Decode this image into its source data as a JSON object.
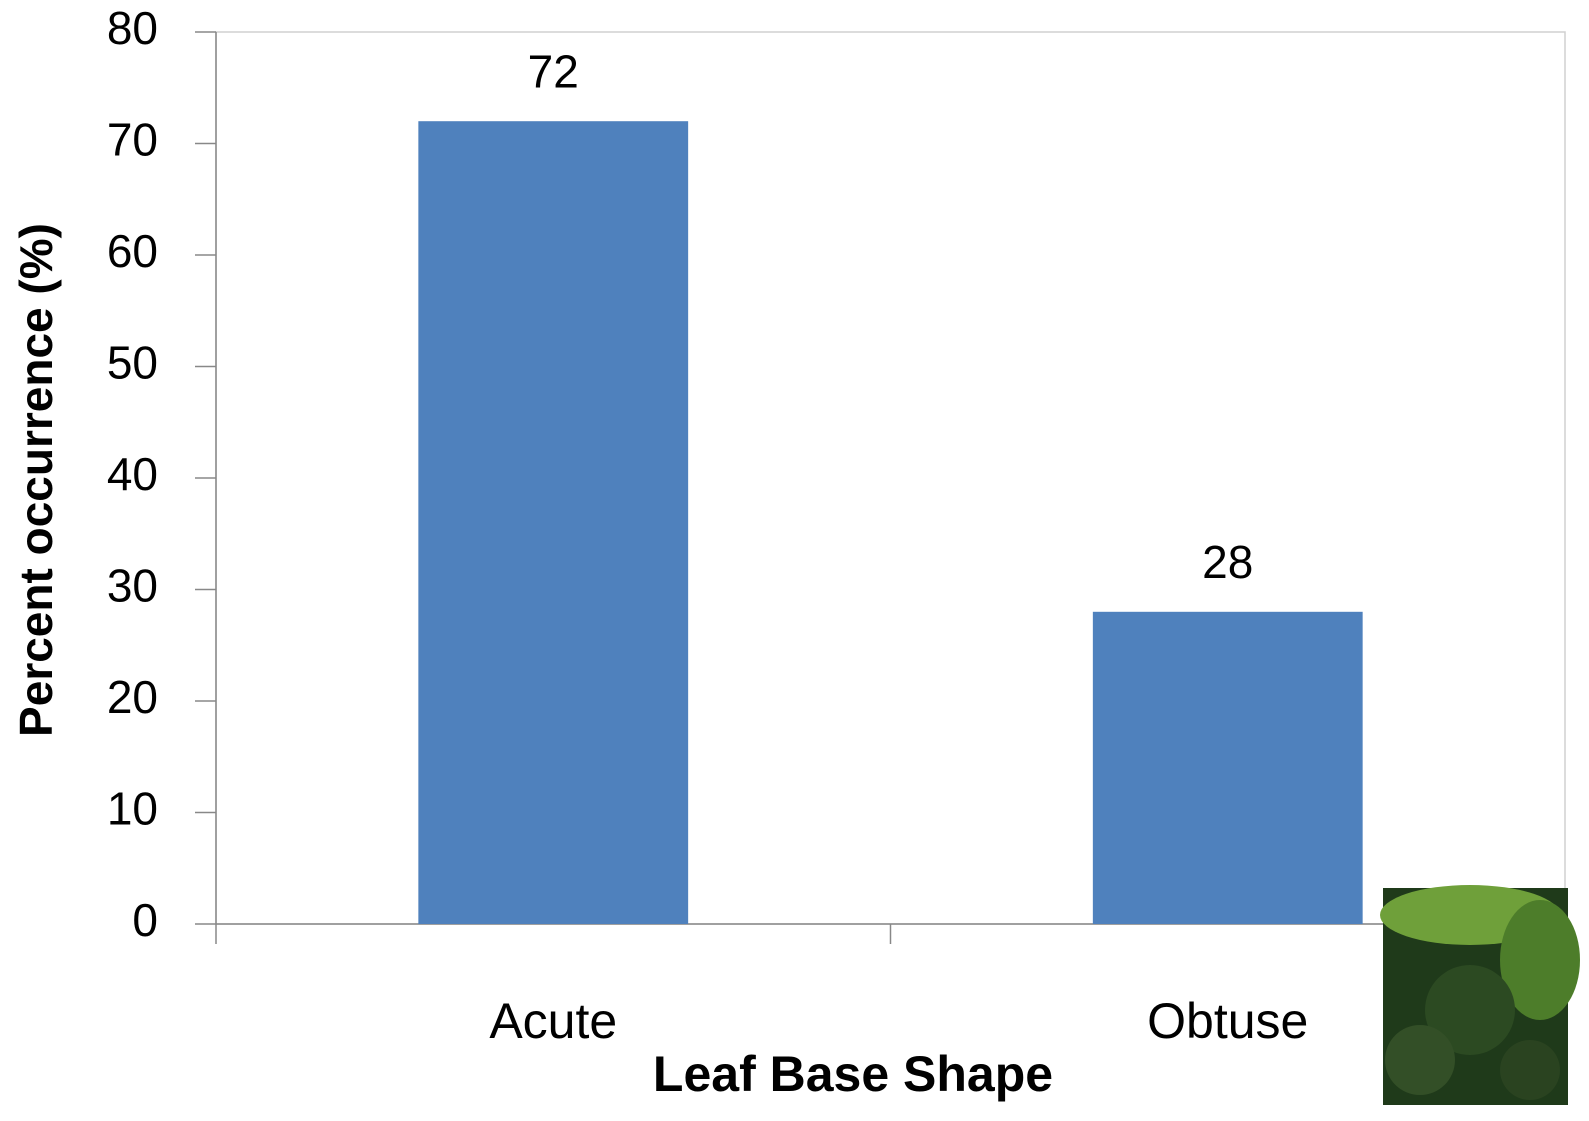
{
  "chart_data": {
    "type": "bar",
    "categories": [
      "Acute",
      "Obtuse"
    ],
    "values": [
      72,
      28
    ],
    "color": "#4f81bd",
    "ylim": [
      0,
      80
    ],
    "yticks": [
      0,
      10,
      20,
      30,
      40,
      50,
      60,
      70,
      80
    ],
    "y_label": "Percent occurrence (%)",
    "x_label": "Leaf Base Shape",
    "grid": false
  }
}
